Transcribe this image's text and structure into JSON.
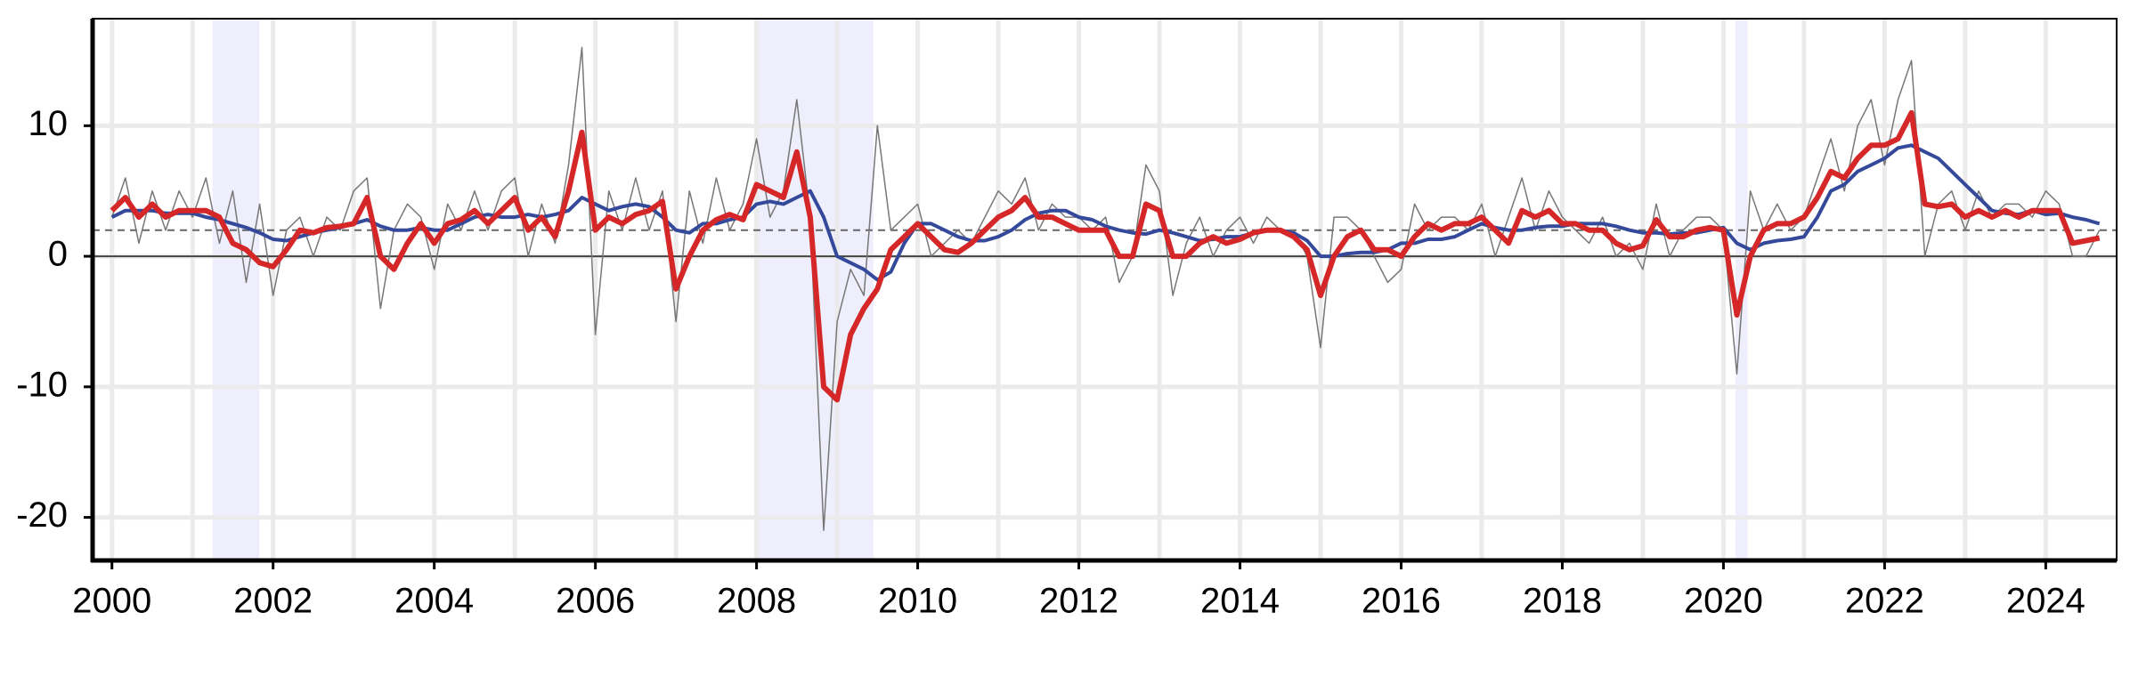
{
  "chart_data": {
    "type": "line",
    "xlim": [
      1999.76,
      2024.88
    ],
    "xticks": [
      2000,
      2002,
      2004,
      2006,
      2008,
      2010,
      2012,
      2014,
      2016,
      2018,
      2020,
      2022,
      2024
    ],
    "xminorticks": [
      2001,
      2003,
      2005,
      2007,
      2009,
      2011,
      2013,
      2015,
      2017,
      2019,
      2021,
      2023
    ],
    "ylim": [
      -23.3,
      18.2
    ],
    "yticks": [
      -20,
      -10,
      0,
      10
    ],
    "grid": true,
    "zero_line": 0,
    "reference_line": 2,
    "shaded": [
      [
        2001.25,
        2001.83
      ],
      [
        2007.97,
        2009.45
      ],
      [
        2020.15,
        2020.3
      ]
    ],
    "shade_color": "#eeeefc",
    "x_start": 2000,
    "x_step_months": 2,
    "series": [
      {
        "color": "#777777",
        "width": 1.5,
        "values": [
          3,
          6,
          1,
          5,
          2,
          5,
          3,
          6,
          1,
          5,
          -2,
          4,
          -3,
          2,
          3,
          0,
          3,
          2,
          5,
          6,
          -4,
          2,
          4,
          3,
          -1,
          4,
          2,
          5,
          2,
          5,
          6,
          0,
          4,
          1,
          7,
          16,
          -6,
          5,
          2,
          6,
          2,
          5,
          -5,
          5,
          1,
          6,
          2,
          4,
          9,
          3,
          5,
          12,
          3,
          -21,
          -5,
          -1,
          -3,
          10,
          2,
          3,
          4,
          0,
          1,
          2,
          1,
          3,
          5,
          4,
          6,
          2,
          4,
          3,
          3,
          2,
          3,
          -2,
          0,
          7,
          5,
          -3,
          1,
          3,
          0,
          2,
          3,
          1,
          3,
          2,
          2,
          0,
          -7,
          3,
          3,
          2,
          0,
          -2,
          -1,
          4,
          2,
          3,
          3,
          2,
          4,
          0,
          3,
          6,
          2,
          5,
          3,
          2,
          1,
          3,
          0,
          1,
          -1,
          4,
          0,
          2,
          3,
          3,
          2,
          -9,
          5,
          2,
          4,
          2,
          3,
          6,
          9,
          5,
          10,
          12,
          7,
          12,
          15,
          0,
          4,
          5,
          2,
          5,
          3,
          4,
          4,
          3,
          5,
          4,
          0,
          0,
          2
        ]
      },
      {
        "color": "#34499a",
        "width": 4,
        "values": [
          3,
          3.5,
          3.5,
          3.5,
          3.3,
          3.3,
          3.3,
          3,
          2.8,
          2.5,
          2.2,
          1.8,
          1.3,
          1.2,
          1.5,
          1.8,
          2,
          2.2,
          2.5,
          2.8,
          2.3,
          2,
          2,
          2.2,
          2,
          2,
          2.5,
          3,
          3.2,
          3,
          3,
          3.2,
          3,
          3.2,
          3.5,
          4.5,
          4,
          3.5,
          3.8,
          4,
          3.8,
          3,
          2,
          1.8,
          2.5,
          2.5,
          2.8,
          3,
          4,
          4.2,
          4,
          4.5,
          5,
          3,
          0,
          -0.5,
          -1,
          -1.8,
          -1.2,
          1,
          2.5,
          2.5,
          2,
          1.5,
          1.2,
          1.2,
          1.5,
          2,
          2.8,
          3.3,
          3.5,
          3.5,
          3,
          2.8,
          2.3,
          2,
          1.8,
          1.7,
          2,
          1.8,
          1.5,
          1.2,
          1.3,
          1.5,
          1.5,
          1.8,
          2,
          2,
          1.8,
          1.2,
          0,
          0,
          0.2,
          0.3,
          0.3,
          0.5,
          1,
          1,
          1.3,
          1.3,
          1.5,
          2,
          2.5,
          2.2,
          2,
          2,
          2.2,
          2.3,
          2.3,
          2.5,
          2.5,
          2.5,
          2.3,
          2,
          1.8,
          1.8,
          1.7,
          1.8,
          1.8,
          2,
          2.2,
          1,
          0.5,
          1,
          1.2,
          1.3,
          1.5,
          3,
          5,
          5.5,
          6.5,
          7,
          7.5,
          8.3,
          8.5,
          8,
          7.5,
          6.5,
          5.5,
          4.5,
          3.5,
          3.3,
          3.2,
          3.5,
          3.2,
          3.3,
          3,
          2.8,
          2.5
        ]
      },
      {
        "color": "#d62728",
        "width": 6,
        "values": [
          3.5,
          4.5,
          3,
          4,
          3,
          3.5,
          3.5,
          3.5,
          3,
          1,
          0.5,
          -0.5,
          -0.8,
          0.5,
          2,
          1.8,
          2.2,
          2.3,
          2.5,
          4.5,
          0,
          -1,
          1,
          2.5,
          1,
          2.5,
          2.8,
          3.5,
          2.5,
          3.5,
          4.5,
          2,
          3,
          1.5,
          5,
          9.5,
          2,
          3,
          2.5,
          3.2,
          3.5,
          4.2,
          -2.5,
          0,
          2,
          2.8,
          3.2,
          2.8,
          5.5,
          5,
          4.5,
          8,
          3,
          -10,
          -11,
          -6,
          -4,
          -2.5,
          0.5,
          1.5,
          2.5,
          1.5,
          0.5,
          0.3,
          1,
          2,
          3,
          3.5,
          4.5,
          3,
          3,
          2.5,
          2,
          2,
          2,
          0,
          0,
          4,
          3.5,
          0,
          0,
          1,
          1.5,
          1,
          1.3,
          1.8,
          2,
          2,
          1.5,
          0.5,
          -3,
          0,
          1.5,
          2,
          0.5,
          0.5,
          0,
          1.5,
          2.5,
          2,
          2.5,
          2.5,
          3,
          2,
          1,
          3.5,
          3,
          3.5,
          2.5,
          2.5,
          2,
          2,
          1,
          0.5,
          0.8,
          2.8,
          1.5,
          1.5,
          2,
          2.2,
          2,
          -4.5,
          0,
          2,
          2.5,
          2.5,
          3,
          4.5,
          6.5,
          6,
          7.5,
          8.5,
          8.5,
          9,
          11,
          4,
          3.8,
          4,
          3,
          3.5,
          3,
          3.5,
          3,
          3.5,
          3.5,
          3.5,
          1,
          1.2,
          1.4
        ]
      }
    ]
  }
}
